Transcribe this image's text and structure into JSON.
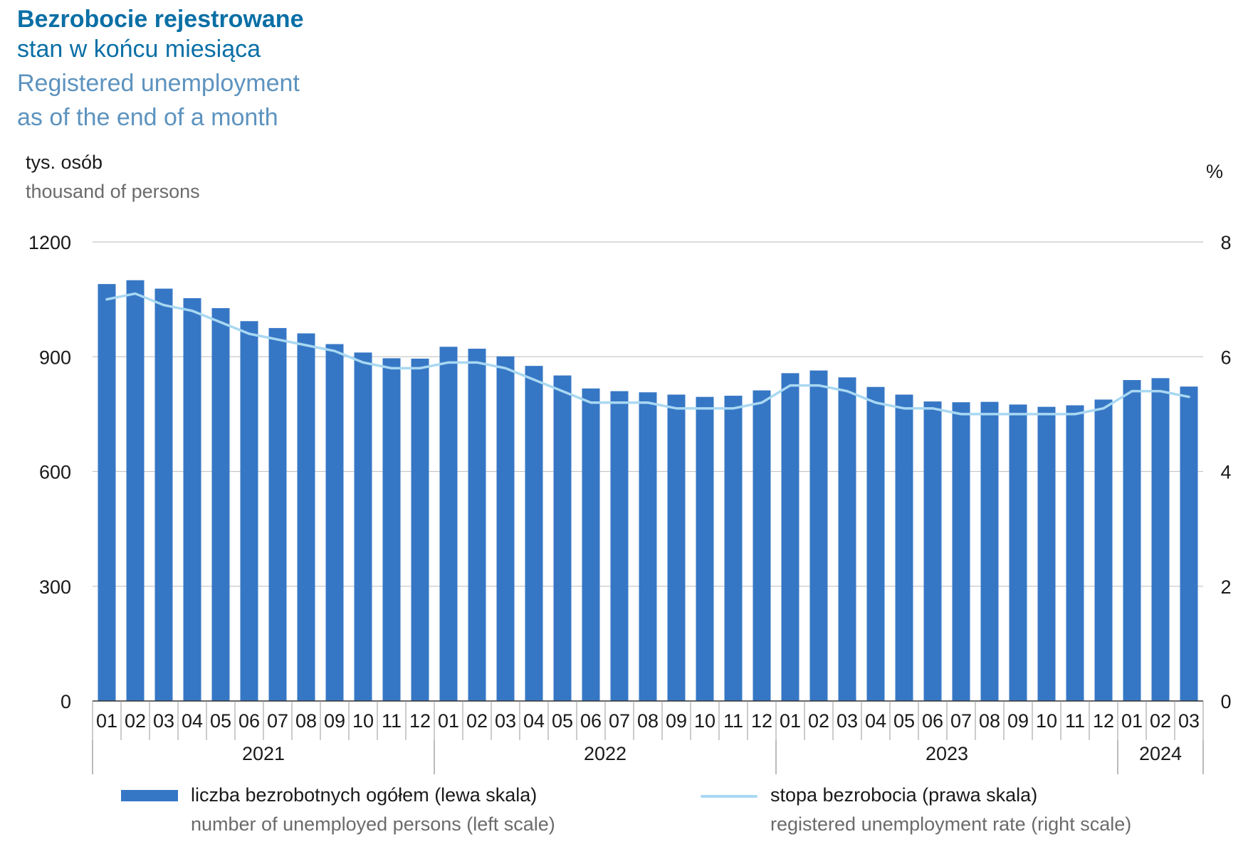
{
  "title": {
    "pl_main": "Bezrobocie rejestrowane",
    "pl_sub": "stan w końcu miesiąca",
    "en_line1": "Registered unemployment",
    "en_line2": "as of the end of a month"
  },
  "axes": {
    "left_unit_pl": "tys. osób",
    "left_unit_en": "thousand of persons",
    "right_unit": "%"
  },
  "legend": {
    "bars_pl": "liczba bezrobotnych ogółem (lewa skala)",
    "bars_en": "number of unemployed persons (left scale)",
    "line_pl": "stopa bezrobocia (prawa skala)",
    "line_en": "registered unemployment rate (right scale)"
  },
  "colors": {
    "bar": "#3677c5",
    "line": "#a9d8f2",
    "grid": "#c8c8c8",
    "title_dark": "#0a6fa6",
    "title_light": "#5d93bf"
  },
  "chart_data": {
    "type": "bar",
    "categories": [
      "01",
      "02",
      "03",
      "04",
      "05",
      "06",
      "07",
      "08",
      "09",
      "10",
      "11",
      "12",
      "01",
      "02",
      "03",
      "04",
      "05",
      "06",
      "07",
      "08",
      "09",
      "10",
      "11",
      "12",
      "01",
      "02",
      "03",
      "04",
      "05",
      "06",
      "07",
      "08",
      "09",
      "10",
      "11",
      "12",
      "01",
      "02",
      "03"
    ],
    "years": [
      {
        "label": "2021",
        "months": 12
      },
      {
        "label": "2022",
        "months": 12
      },
      {
        "label": "2023",
        "months": 12
      },
      {
        "label": "2024",
        "months": 3
      }
    ],
    "series": [
      {
        "name": "liczba bezrobotnych ogółem (lewa skala)",
        "axis": "left",
        "type": "bar",
        "values": [
          1090,
          1100,
          1078,
          1053,
          1027,
          993,
          975,
          961,
          933,
          911,
          896,
          895,
          926,
          921,
          901,
          876,
          851,
          817,
          810,
          807,
          801,
          795,
          798,
          812,
          857,
          864,
          846,
          821,
          801,
          783,
          781,
          782,
          775,
          769,
          773,
          788,
          839,
          844,
          822
        ]
      },
      {
        "name": "stopa bezrobocia (prawa skala)",
        "axis": "right",
        "type": "line",
        "values": [
          7.0,
          7.1,
          6.9,
          6.8,
          6.6,
          6.4,
          6.3,
          6.2,
          6.1,
          5.9,
          5.8,
          5.8,
          5.9,
          5.9,
          5.8,
          5.6,
          5.4,
          5.2,
          5.2,
          5.2,
          5.1,
          5.1,
          5.1,
          5.2,
          5.5,
          5.5,
          5.4,
          5.2,
          5.1,
          5.1,
          5.0,
          5.0,
          5.0,
          5.0,
          5.0,
          5.1,
          5.4,
          5.4,
          5.3
        ]
      }
    ],
    "y_left": {
      "min": 0,
      "max": 1200,
      "ticks": [
        0,
        300,
        600,
        900,
        1200
      ]
    },
    "y_right": {
      "min": 0,
      "max": 8,
      "ticks": [
        0,
        2,
        4,
        6,
        8
      ]
    },
    "grid": true,
    "legend_position": "bottom"
  }
}
